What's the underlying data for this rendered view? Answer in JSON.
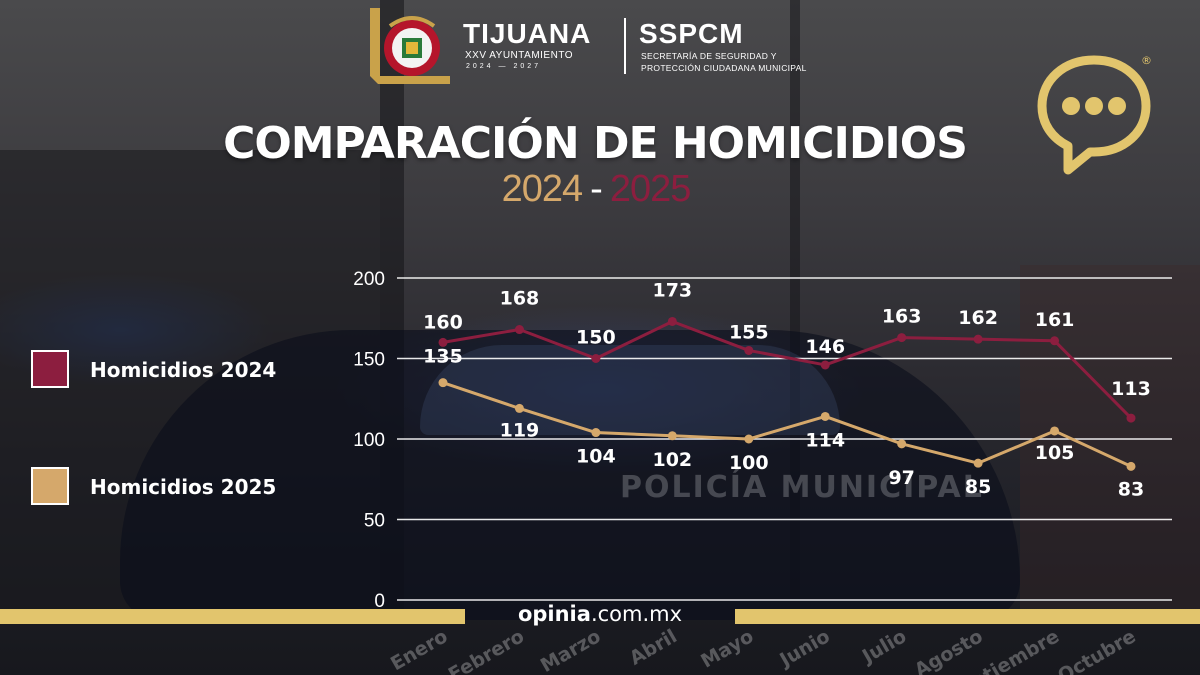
{
  "header": {
    "city": "TIJUANA",
    "ayuntamiento": "XXV AYUNTAMIENTO",
    "period": "2024 — 2027",
    "agency": "SSPCM",
    "agency_line1": "SECRETARÍA DE SEGURIDAD Y",
    "agency_line2": "PROTECCIÓN CIUDADANA MUNICIPAL"
  },
  "background": {
    "car_text": "POLICÍA MUNICIPAL"
  },
  "colors": {
    "series_2024": "#8c1e3f",
    "series_2025": "#d5a86b",
    "accent": "#e2c56d"
  },
  "chart_data": {
    "type": "line",
    "title": "COMPARACIÓN DE HOMICIDIOS",
    "subtitle": {
      "left": "2024",
      "separator": "-",
      "right": "2025"
    },
    "categories": [
      "Enero",
      "Febrero",
      "Marzo",
      "Abril",
      "Mayo",
      "Junio",
      "Julio",
      "Agosto",
      "Septiembre",
      "Octubre"
    ],
    "series": [
      {
        "name": "Homicidios 2024",
        "color": "#8c1e3f",
        "values": [
          160,
          168,
          150,
          173,
          155,
          146,
          163,
          162,
          161,
          113
        ]
      },
      {
        "name": "Homicidios 2025",
        "color": "#d5a86b",
        "values": [
          135,
          119,
          104,
          102,
          100,
          114,
          97,
          85,
          105,
          83
        ]
      }
    ],
    "yticks": [
      "0",
      "50",
      "100",
      "150",
      "200"
    ],
    "ylim": [
      0,
      200
    ],
    "grid": true,
    "legend_position": "left"
  },
  "footer": {
    "site_bold": "opinia",
    "site_rest": ".com.mx"
  }
}
